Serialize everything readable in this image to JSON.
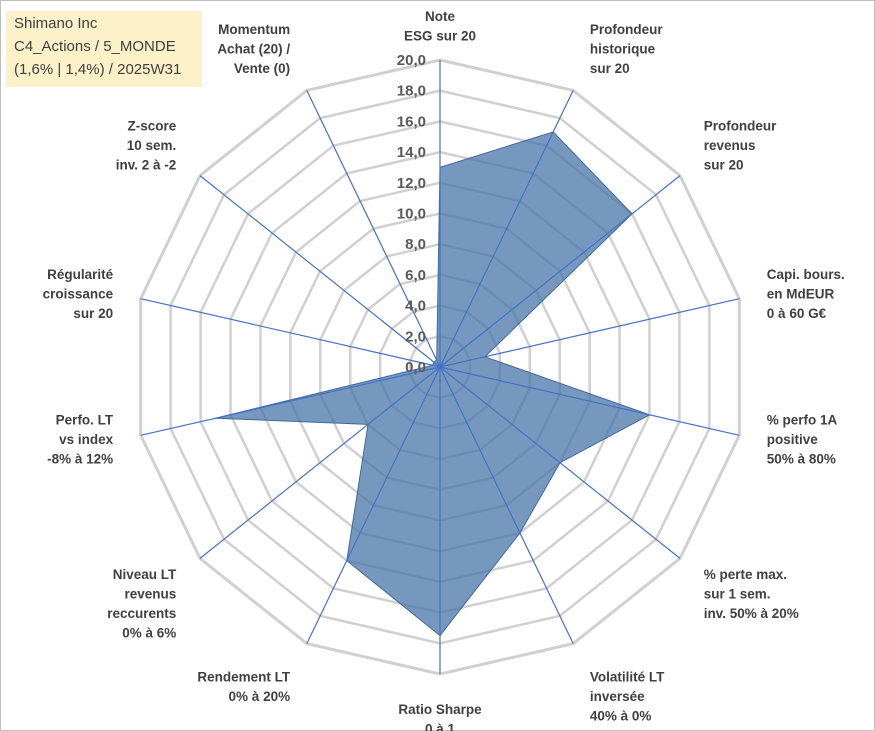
{
  "title_box": {
    "lines": [
      "Shimano Inc",
      "C4_Actions / 5_MONDE",
      "(1,6% | 1,4%) / 2025W31"
    ]
  },
  "chart_data": {
    "type": "radar",
    "rmin": 0,
    "rmax": 20,
    "tick_step": 2,
    "tick_labels": [
      "0,0",
      "2,0",
      "4,0",
      "6,0",
      "8,0",
      "10,0",
      "12,0",
      "14,0",
      "16,0",
      "18,0",
      "20,0"
    ],
    "grid": true,
    "legend": "none",
    "series_color": "#4a76a8",
    "axes": [
      {
        "label": [
          "Note",
          "ESG sur 20"
        ],
        "value": 13.0
      },
      {
        "label": [
          "Profondeur",
          "historique",
          "sur 20"
        ],
        "value": 17.0
      },
      {
        "label": [
          "Profondeur",
          "revenus",
          "sur 20"
        ],
        "value": 16.0
      },
      {
        "label": [
          "Capi. bours.",
          "en MdEUR",
          "0 à 60 G€"
        ],
        "value": 3.0
      },
      {
        "label": [
          "% perfo 1A",
          "positive",
          "50% à 80%"
        ],
        "value": 14.0
      },
      {
        "label": [
          "% perte max.",
          "sur 1 sem.",
          "inv. 50% à 20%"
        ],
        "value": 10.0
      },
      {
        "label": [
          "Volatilité LT",
          "inversée",
          "40% à 0%"
        ],
        "value": 12.0
      },
      {
        "label": [
          "Ratio Sharpe",
          "0 à 1"
        ],
        "value": 17.5
      },
      {
        "label": [
          "Rendement LT",
          "0% à 20%"
        ],
        "value": 14.0
      },
      {
        "label": [
          "Niveau LT",
          "revenus",
          "reccurents",
          "0% à 6%"
        ],
        "value": 6.0
      },
      {
        "label": [
          "Perfo. LT",
          "vs index",
          "-8% à 12%"
        ],
        "value": 15.0
      },
      {
        "label": [
          "Régularité",
          "croissance",
          "sur 20"
        ],
        "value": 0.5
      },
      {
        "label": [
          "Z-score",
          "10 sem.",
          "inv. 2 à -2"
        ],
        "value": 0.5
      },
      {
        "label": [
          "Momentum",
          "Achat (20) /",
          "Vente (0)"
        ],
        "value": 0.5
      }
    ]
  }
}
